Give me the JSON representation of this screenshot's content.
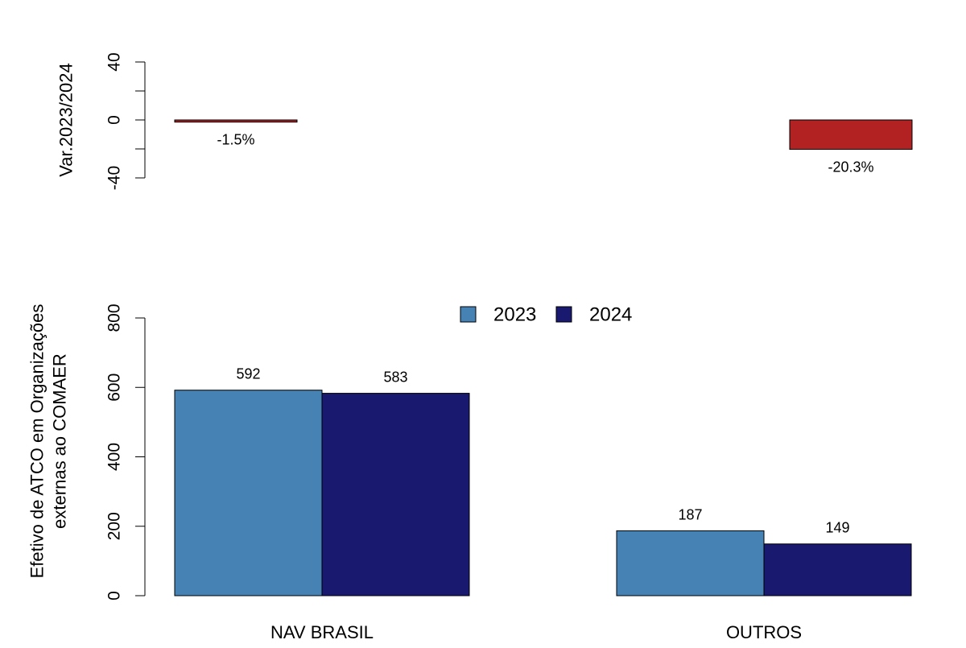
{
  "chart_data": [
    {
      "type": "bar",
      "ylabel": "Var.2023/2024",
      "ylim": [
        -40,
        40
      ],
      "yticks": [
        -40,
        0,
        40
      ],
      "categories": [
        "NAV BRASIL",
        "OUTROS"
      ],
      "values": [
        -1.5,
        -20.3
      ],
      "data_labels": [
        "-1.5%",
        "-20.3%"
      ],
      "bar_color": "#b22222",
      "grid": false
    },
    {
      "type": "bar",
      "ylabel_lines": [
        "Efetivo de ATCO em Organizações",
        "externas ao COMAER"
      ],
      "ylim": [
        0,
        800
      ],
      "yticks": [
        0,
        200,
        400,
        600,
        800
      ],
      "categories": [
        "NAV BRASIL",
        "OUTROS"
      ],
      "series": [
        {
          "name": "2023",
          "values": [
            592,
            187
          ],
          "color": "#4682b4"
        },
        {
          "name": "2024",
          "values": [
            583,
            149
          ],
          "color": "#191970"
        }
      ],
      "legend_position": "top",
      "grid": false
    }
  ]
}
